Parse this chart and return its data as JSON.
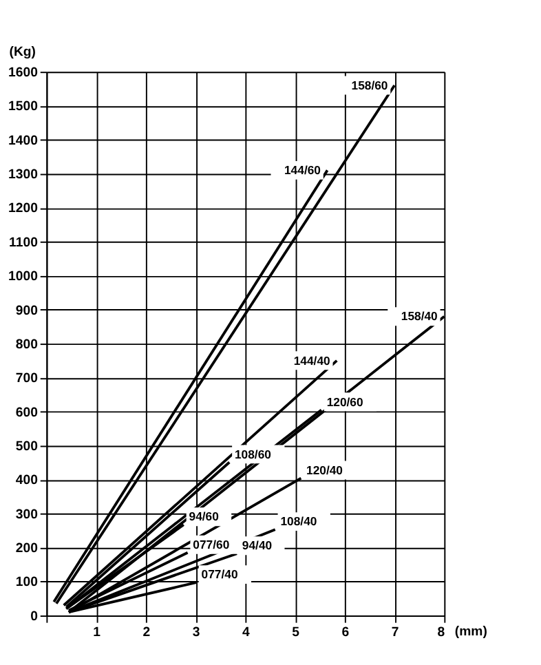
{
  "chart_data": {
    "type": "line",
    "xlabel": "(mm)",
    "ylabel": "(Kg)",
    "xlim": [
      0,
      8
    ],
    "ylim": [
      0,
      1600
    ],
    "xticks": [
      {
        "value": 0,
        "label": null
      },
      1,
      2,
      3,
      4,
      5,
      6,
      7,
      8
    ],
    "yticks": [
      0,
      100,
      200,
      300,
      400,
      500,
      600,
      700,
      800,
      900,
      1000,
      1100,
      1200,
      1300,
      1400,
      1500,
      1600
    ],
    "grid": true,
    "marker": "none",
    "line_style": "solid",
    "series": [
      {
        "name": "158/60",
        "color": "#000000",
        "x": [
          0.2,
          7.0
        ],
        "values": [
          35,
          1560
        ]
      },
      {
        "name": "144/60",
        "color": "#000000",
        "x": [
          0.15,
          5.65
        ],
        "values": [
          40,
          1310
        ]
      },
      {
        "name": "158/40",
        "color": "#000000",
        "x": [
          0.45,
          8.0
        ],
        "values": [
          10,
          880
        ]
      },
      {
        "name": "144/40",
        "color": "#000000",
        "x": [
          0.35,
          5.84
        ],
        "values": [
          30,
          750
        ]
      },
      {
        "name": "120/60",
        "color": "#000000",
        "x": [
          0.4,
          5.53
        ],
        "values": [
          20,
          605
        ]
      },
      {
        "name": "108/60",
        "color": "#000000",
        "x": [
          0.4,
          3.68
        ],
        "values": [
          25,
          451
        ]
      },
      {
        "name": "120/40",
        "color": "#000000",
        "x": [
          0.45,
          5.12
        ],
        "values": [
          10,
          404
        ]
      },
      {
        "name": "94/60",
        "color": "#000000",
        "x": [
          0.4,
          2.76
        ],
        "values": [
          20,
          267
        ]
      },
      {
        "name": "108/40",
        "color": "#000000",
        "x": [
          0.45,
          4.6
        ],
        "values": [
          10,
          253
        ]
      },
      {
        "name": "077/60",
        "color": "#000000",
        "x": [
          0.45,
          2.84
        ],
        "values": [
          15,
          185
        ]
      },
      {
        "name": "94/40",
        "color": "#000000",
        "x": [
          0.45,
          3.83
        ],
        "values": [
          10,
          182
        ]
      },
      {
        "name": "077/40",
        "color": "#000000",
        "x": [
          0.45,
          3.01
        ],
        "values": [
          10,
          97
        ]
      }
    ]
  }
}
